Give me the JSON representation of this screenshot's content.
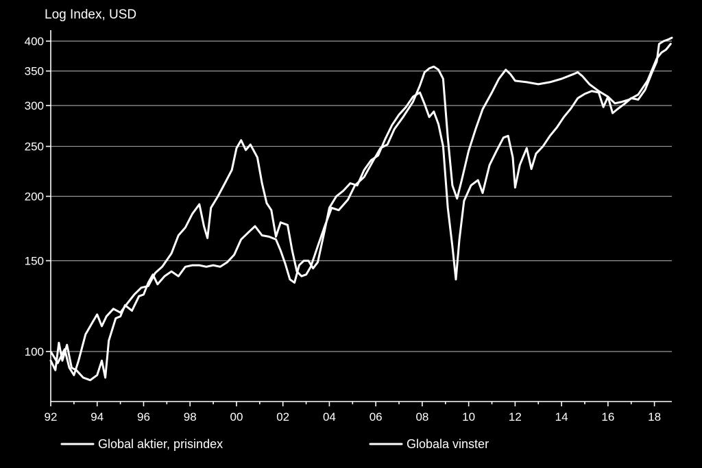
{
  "chart_data": {
    "type": "line",
    "ylabel": "Log Index, USD",
    "yscale": "log",
    "ylim": [
      82,
      410
    ],
    "xlim": [
      1992,
      2018.75
    ],
    "yticks": [
      100,
      150,
      200,
      250,
      300,
      350,
      400
    ],
    "xticks": [
      {
        "label": "92",
        "value": 1992
      },
      {
        "label": "94",
        "value": 1994
      },
      {
        "label": "96",
        "value": 1996
      },
      {
        "label": "98",
        "value": 1998
      },
      {
        "label": "00",
        "value": 2000
      },
      {
        "label": "02",
        "value": 2002
      },
      {
        "label": "04",
        "value": 2004
      },
      {
        "label": "06",
        "value": 2006
      },
      {
        "label": "08",
        "value": 2008
      },
      {
        "label": "10",
        "value": 2010
      },
      {
        "label": "12",
        "value": 2012
      },
      {
        "label": "14",
        "value": 2014
      },
      {
        "label": "16",
        "value": 2016
      },
      {
        "label": "18",
        "value": 2018
      }
    ],
    "grid": true,
    "legend_position": "bottom",
    "series": [
      {
        "name": "Global aktier, prisindex",
        "color": "#ffffff",
        "points": [
          [
            1992.0,
            100
          ],
          [
            1992.3,
            95
          ],
          [
            1992.6,
            101
          ],
          [
            1992.8,
            93
          ],
          [
            1993.0,
            90
          ],
          [
            1993.2,
            96
          ],
          [
            1993.5,
            108
          ],
          [
            1993.8,
            114
          ],
          [
            1994.0,
            118
          ],
          [
            1994.2,
            112
          ],
          [
            1994.4,
            117
          ],
          [
            1994.7,
            121
          ],
          [
            1995.0,
            119
          ],
          [
            1995.3,
            124
          ],
          [
            1995.6,
            129
          ],
          [
            1995.9,
            133
          ],
          [
            1996.2,
            134
          ],
          [
            1996.5,
            142
          ],
          [
            1996.8,
            146
          ],
          [
            1997.2,
            155
          ],
          [
            1997.5,
            168
          ],
          [
            1997.8,
            174
          ],
          [
            1998.1,
            185
          ],
          [
            1998.4,
            193
          ],
          [
            1998.6,
            175
          ],
          [
            1998.75,
            166
          ],
          [
            1998.9,
            190
          ],
          [
            1999.2,
            200
          ],
          [
            1999.5,
            212
          ],
          [
            1999.8,
            225
          ],
          [
            2000.0,
            248
          ],
          [
            2000.2,
            257
          ],
          [
            2000.4,
            246
          ],
          [
            2000.6,
            252
          ],
          [
            2000.9,
            238
          ],
          [
            2001.1,
            212
          ],
          [
            2001.3,
            194
          ],
          [
            2001.5,
            188
          ],
          [
            2001.7,
            167
          ],
          [
            2001.9,
            178
          ],
          [
            2002.2,
            176
          ],
          [
            2002.4,
            157
          ],
          [
            2002.6,
            143
          ],
          [
            2002.8,
            140
          ],
          [
            2003.0,
            141
          ],
          [
            2003.2,
            146
          ],
          [
            2003.5,
            160
          ],
          [
            2003.8,
            175
          ],
          [
            2004.1,
            190
          ],
          [
            2004.4,
            188
          ],
          [
            2004.8,
            197
          ],
          [
            2005.1,
            210
          ],
          [
            2005.5,
            218
          ],
          [
            2005.9,
            235
          ],
          [
            2006.2,
            248
          ],
          [
            2006.5,
            252
          ],
          [
            2006.8,
            270
          ],
          [
            2007.2,
            286
          ],
          [
            2007.6,
            305
          ],
          [
            2007.9,
            328
          ],
          [
            2008.1,
            348
          ],
          [
            2008.3,
            354
          ],
          [
            2008.5,
            357
          ],
          [
            2008.7,
            352
          ],
          [
            2008.9,
            338
          ],
          [
            2009.1,
            260
          ],
          [
            2009.3,
            210
          ],
          [
            2009.5,
            198
          ],
          [
            2009.7,
            215
          ],
          [
            2010.0,
            245
          ],
          [
            2010.3,
            270
          ],
          [
            2010.6,
            295
          ],
          [
            2011.0,
            318
          ],
          [
            2011.3,
            338
          ],
          [
            2011.6,
            352
          ],
          [
            2011.8,
            345
          ],
          [
            2012.0,
            335
          ],
          [
            2012.5,
            333
          ],
          [
            2013.0,
            330
          ],
          [
            2013.5,
            333
          ],
          [
            2014.0,
            338
          ],
          [
            2014.5,
            345
          ],
          [
            2014.7,
            348
          ],
          [
            2014.9,
            342
          ],
          [
            2015.2,
            330
          ],
          [
            2015.6,
            320
          ],
          [
            2016.0,
            312
          ],
          [
            2016.3,
            303
          ],
          [
            2016.6,
            305
          ],
          [
            2016.9,
            308
          ],
          [
            2017.3,
            315
          ],
          [
            2017.7,
            335
          ],
          [
            2017.9,
            352
          ],
          [
            2018.1,
            370
          ],
          [
            2018.3,
            380
          ],
          [
            2018.5,
            385
          ],
          [
            2018.7,
            395
          ]
        ]
      },
      {
        "name": "Globala vinster",
        "color": "#ffffff",
        "points": [
          [
            1992.0,
            96
          ],
          [
            1992.2,
            92
          ],
          [
            1992.35,
            104
          ],
          [
            1992.5,
            96
          ],
          [
            1992.7,
            103
          ],
          [
            1992.9,
            93
          ],
          [
            1993.1,
            92
          ],
          [
            1993.4,
            89
          ],
          [
            1993.7,
            88
          ],
          [
            1994.0,
            90
          ],
          [
            1994.2,
            96
          ],
          [
            1994.35,
            89
          ],
          [
            1994.5,
            105
          ],
          [
            1994.8,
            116
          ],
          [
            1995.0,
            117
          ],
          [
            1995.2,
            123
          ],
          [
            1995.5,
            120
          ],
          [
            1995.8,
            128
          ],
          [
            1996.0,
            129
          ],
          [
            1996.2,
            136
          ],
          [
            1996.4,
            141
          ],
          [
            1996.6,
            135
          ],
          [
            1996.9,
            140
          ],
          [
            1997.2,
            143
          ],
          [
            1997.5,
            140
          ],
          [
            1997.8,
            146
          ],
          [
            1998.1,
            147
          ],
          [
            1998.4,
            147
          ],
          [
            1998.7,
            146
          ],
          [
            1999.0,
            147
          ],
          [
            1999.3,
            146
          ],
          [
            1999.6,
            149
          ],
          [
            1999.9,
            154
          ],
          [
            2000.2,
            165
          ],
          [
            2000.5,
            170
          ],
          [
            2000.8,
            175
          ],
          [
            2001.1,
            168
          ],
          [
            2001.4,
            167
          ],
          [
            2001.7,
            165
          ],
          [
            2001.9,
            157
          ],
          [
            2002.1,
            148
          ],
          [
            2002.3,
            138
          ],
          [
            2002.5,
            136
          ],
          [
            2002.7,
            147
          ],
          [
            2002.9,
            150
          ],
          [
            2003.1,
            150
          ],
          [
            2003.3,
            145
          ],
          [
            2003.5,
            149
          ],
          [
            2003.8,
            172
          ],
          [
            2004.0,
            190
          ],
          [
            2004.3,
            200
          ],
          [
            2004.6,
            205
          ],
          [
            2004.9,
            212
          ],
          [
            2005.2,
            210
          ],
          [
            2005.5,
            225
          ],
          [
            2005.8,
            235
          ],
          [
            2006.1,
            240
          ],
          [
            2006.4,
            258
          ],
          [
            2006.7,
            275
          ],
          [
            2007.0,
            288
          ],
          [
            2007.3,
            298
          ],
          [
            2007.6,
            312
          ],
          [
            2007.9,
            318
          ],
          [
            2008.1,
            302
          ],
          [
            2008.3,
            285
          ],
          [
            2008.5,
            292
          ],
          [
            2008.7,
            276
          ],
          [
            2008.9,
            250
          ],
          [
            2009.1,
            190
          ],
          [
            2009.3,
            160
          ],
          [
            2009.45,
            138
          ],
          [
            2009.6,
            165
          ],
          [
            2009.8,
            196
          ],
          [
            2010.1,
            210
          ],
          [
            2010.4,
            215
          ],
          [
            2010.6,
            203
          ],
          [
            2010.9,
            230
          ],
          [
            2011.2,
            245
          ],
          [
            2011.5,
            260
          ],
          [
            2011.7,
            262
          ],
          [
            2011.9,
            238
          ],
          [
            2012.0,
            208
          ],
          [
            2012.2,
            230
          ],
          [
            2012.5,
            248
          ],
          [
            2012.7,
            226
          ],
          [
            2012.9,
            242
          ],
          [
            2013.2,
            250
          ],
          [
            2013.5,
            262
          ],
          [
            2013.8,
            272
          ],
          [
            2014.1,
            285
          ],
          [
            2014.4,
            296
          ],
          [
            2014.7,
            310
          ],
          [
            2015.0,
            316
          ],
          [
            2015.3,
            320
          ],
          [
            2015.6,
            318
          ],
          [
            2015.8,
            298
          ],
          [
            2016.0,
            312
          ],
          [
            2016.2,
            290
          ],
          [
            2016.4,
            295
          ],
          [
            2016.7,
            302
          ],
          [
            2017.0,
            310
          ],
          [
            2017.3,
            308
          ],
          [
            2017.6,
            322
          ],
          [
            2017.9,
            348
          ],
          [
            2018.1,
            365
          ],
          [
            2018.2,
            395
          ],
          [
            2018.4,
            400
          ],
          [
            2018.6,
            403
          ],
          [
            2018.75,
            406
          ]
        ]
      }
    ]
  }
}
